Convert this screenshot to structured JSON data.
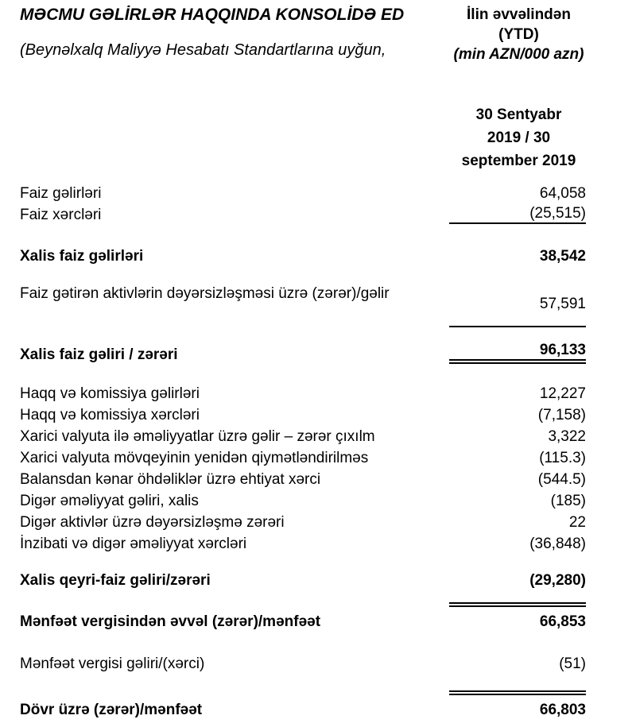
{
  "document": {
    "title": "MƏCMU GƏLİRLƏR HAQQINDA KONSOLİDƏ ED",
    "subtitle": "(Beynəlxalq Maliyyə Hesabatı Standartlarına uyğun,",
    "period_block": {
      "line1": "İlin əvvəlindən",
      "line2": "(YTD)",
      "line3": "(min AZN/000 azn)"
    },
    "column_header": {
      "line1": "30 Sentyabr",
      "line2": "2019 / 30",
      "line3": "september 2019"
    }
  },
  "rows": [
    {
      "label": "Faiz gəlirləri",
      "value": "64,058"
    },
    {
      "label": "Faiz xərcləri",
      "value": "(25,515)"
    },
    {
      "label": "Xalis faiz gəlirləri",
      "value": "38,542"
    },
    {
      "label": "Faiz gətirən aktivlərin dəyərsizləşməsi üzrə (zərər)/gəlir",
      "value": "57,591"
    },
    {
      "label": "Xalis faiz gəliri / zərəri",
      "value": "96,133"
    },
    {
      "label": "Haqq və komissiya gəlirləri",
      "value": "12,227"
    },
    {
      "label": "Haqq və komissiya xərcləri",
      "value": "(7,158)"
    },
    {
      "label": "Xarici valyuta ilə əməliyyatlar üzrə gəlir – zərər çıxılm",
      "value": "3,322"
    },
    {
      "label": "Xarici valyuta mövqeyinin yenidən qiymətləndirilməs",
      "value": "(115.3)"
    },
    {
      "label": "Balansdan kənar öhdəliklər üzrə ehtiyat xərci",
      "value": "(544.5)"
    },
    {
      "label": "Digər əməliyyat gəliri, xalis",
      "value": "(185)"
    },
    {
      "label": "Digər aktivlər üzrə dəyərsizləşmə zərəri",
      "value": "22"
    },
    {
      "label": "İnzibati və digər əməliyyat xərcləri",
      "value": "(36,848)"
    },
    {
      "label": "Xalis qeyri-faiz gəliri/zərəri",
      "value": "(29,280)"
    },
    {
      "label": "Mənfəət vergisindən əvvəl (zərər)/mənfəət",
      "value": "66,853"
    },
    {
      "label": "Mənfəət vergisi gəliri/(xərci)",
      "value": "(51)"
    },
    {
      "label": "Dövr üzrə (zərər)/mənfəət",
      "value": "66,803"
    }
  ],
  "colors": {
    "text": "#000000",
    "background": "#ffffff"
  }
}
